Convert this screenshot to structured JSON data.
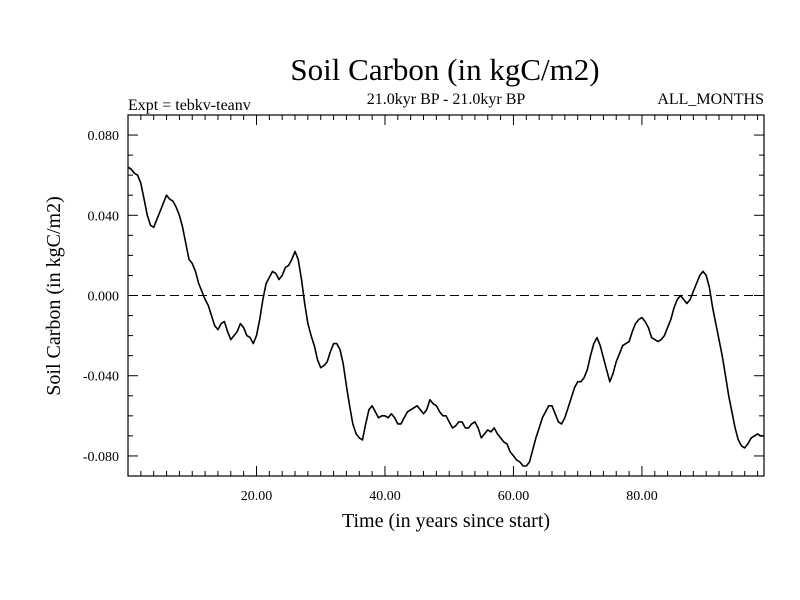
{
  "chart_data": {
    "type": "line",
    "title": "Soil Carbon (in kgC/m2)",
    "subtitle": "21.0kyr BP - 21.0kyr BP",
    "left_note": "Expt = tebkv-teanv",
    "right_note": "ALL_MONTHS",
    "xlabel": "Time (in years since start)",
    "ylabel": "Soil Carbon (in kgC/m2)",
    "xlim": [
      0,
      99
    ],
    "ylim": [
      -0.09,
      0.09
    ],
    "x_ticks": [
      {
        "v": 20,
        "label": "20.00"
      },
      {
        "v": 40,
        "label": "40.00"
      },
      {
        "v": 60,
        "label": "60.00"
      },
      {
        "v": 80,
        "label": "80.00"
      }
    ],
    "y_ticks": [
      {
        "v": 0.08,
        "label": "0.080"
      },
      {
        "v": 0.04,
        "label": "0.040"
      },
      {
        "v": 0.0,
        "label": "0.000"
      },
      {
        "v": -0.04,
        "label": "-0.040"
      },
      {
        "v": -0.08,
        "label": "-0.080"
      }
    ],
    "reference_line": {
      "y": 0.0,
      "style": "dashed"
    },
    "grid": false,
    "series": [
      {
        "color": "#000000",
        "points": [
          [
            0.0,
            0.064
          ],
          [
            0.5,
            0.063
          ],
          [
            1.0,
            0.061
          ],
          [
            1.5,
            0.06
          ],
          [
            2.0,
            0.056
          ],
          [
            2.5,
            0.048
          ],
          [
            3.0,
            0.04
          ],
          [
            3.5,
            0.035
          ],
          [
            4.0,
            0.034
          ],
          [
            4.5,
            0.038
          ],
          [
            5.0,
            0.042
          ],
          [
            5.5,
            0.046
          ],
          [
            6.0,
            0.05
          ],
          [
            6.5,
            0.048
          ],
          [
            7.0,
            0.047
          ],
          [
            7.5,
            0.044
          ],
          [
            8.0,
            0.04
          ],
          [
            8.5,
            0.034
          ],
          [
            9.0,
            0.026
          ],
          [
            9.5,
            0.018
          ],
          [
            10.0,
            0.016
          ],
          [
            10.5,
            0.012
          ],
          [
            11.0,
            0.006
          ],
          [
            11.5,
            0.002
          ],
          [
            12.0,
            -0.002
          ],
          [
            12.5,
            -0.005
          ],
          [
            13.0,
            -0.01
          ],
          [
            13.5,
            -0.015
          ],
          [
            14.0,
            -0.017
          ],
          [
            14.5,
            -0.014
          ],
          [
            15.0,
            -0.013
          ],
          [
            15.5,
            -0.018
          ],
          [
            16.0,
            -0.022
          ],
          [
            16.5,
            -0.02
          ],
          [
            17.0,
            -0.018
          ],
          [
            17.5,
            -0.014
          ],
          [
            18.0,
            -0.016
          ],
          [
            18.5,
            -0.02
          ],
          [
            19.0,
            -0.021
          ],
          [
            19.5,
            -0.024
          ],
          [
            20.0,
            -0.02
          ],
          [
            20.5,
            -0.012
          ],
          [
            21.0,
            -0.002
          ],
          [
            21.5,
            0.006
          ],
          [
            22.0,
            0.009
          ],
          [
            22.5,
            0.012
          ],
          [
            23.0,
            0.011
          ],
          [
            23.5,
            0.008
          ],
          [
            24.0,
            0.01
          ],
          [
            24.5,
            0.014
          ],
          [
            25.0,
            0.015
          ],
          [
            25.5,
            0.018
          ],
          [
            26.0,
            0.022
          ],
          [
            26.5,
            0.018
          ],
          [
            27.0,
            0.008
          ],
          [
            27.5,
            -0.004
          ],
          [
            28.0,
            -0.014
          ],
          [
            28.5,
            -0.02
          ],
          [
            29.0,
            -0.025
          ],
          [
            29.5,
            -0.032
          ],
          [
            30.0,
            -0.036
          ],
          [
            30.5,
            -0.035
          ],
          [
            31.0,
            -0.033
          ],
          [
            31.5,
            -0.028
          ],
          [
            32.0,
            -0.024
          ],
          [
            32.5,
            -0.024
          ],
          [
            33.0,
            -0.027
          ],
          [
            33.5,
            -0.034
          ],
          [
            34.0,
            -0.045
          ],
          [
            34.5,
            -0.055
          ],
          [
            35.0,
            -0.064
          ],
          [
            35.5,
            -0.069
          ],
          [
            36.0,
            -0.071
          ],
          [
            36.5,
            -0.072
          ],
          [
            37.0,
            -0.064
          ],
          [
            37.5,
            -0.057
          ],
          [
            38.0,
            -0.055
          ],
          [
            38.5,
            -0.058
          ],
          [
            39.0,
            -0.061
          ],
          [
            39.5,
            -0.06
          ],
          [
            40.0,
            -0.06
          ],
          [
            40.5,
            -0.061
          ],
          [
            41.0,
            -0.059
          ],
          [
            41.5,
            -0.061
          ],
          [
            42.0,
            -0.064
          ],
          [
            42.5,
            -0.064
          ],
          [
            43.0,
            -0.061
          ],
          [
            43.5,
            -0.058
          ],
          [
            44.0,
            -0.057
          ],
          [
            44.5,
            -0.056
          ],
          [
            45.0,
            -0.055
          ],
          [
            45.5,
            -0.057
          ],
          [
            46.0,
            -0.059
          ],
          [
            46.5,
            -0.057
          ],
          [
            47.0,
            -0.052
          ],
          [
            47.5,
            -0.054
          ],
          [
            48.0,
            -0.055
          ],
          [
            48.5,
            -0.058
          ],
          [
            49.0,
            -0.06
          ],
          [
            49.5,
            -0.06
          ],
          [
            50.0,
            -0.063
          ],
          [
            50.5,
            -0.066
          ],
          [
            51.0,
            -0.065
          ],
          [
            51.5,
            -0.063
          ],
          [
            52.0,
            -0.063
          ],
          [
            52.5,
            -0.066
          ],
          [
            53.0,
            -0.066
          ],
          [
            53.5,
            -0.064
          ],
          [
            54.0,
            -0.063
          ],
          [
            54.5,
            -0.066
          ],
          [
            55.0,
            -0.071
          ],
          [
            55.5,
            -0.069
          ],
          [
            56.0,
            -0.067
          ],
          [
            56.5,
            -0.068
          ],
          [
            57.0,
            -0.066
          ],
          [
            57.5,
            -0.069
          ],
          [
            58.0,
            -0.071
          ],
          [
            58.5,
            -0.073
          ],
          [
            59.0,
            -0.074
          ],
          [
            59.5,
            -0.078
          ],
          [
            60.0,
            -0.08
          ],
          [
            60.5,
            -0.082
          ],
          [
            61.0,
            -0.083
          ],
          [
            61.5,
            -0.085
          ],
          [
            62.0,
            -0.085
          ],
          [
            62.5,
            -0.083
          ],
          [
            63.0,
            -0.077
          ],
          [
            63.5,
            -0.071
          ],
          [
            64.0,
            -0.066
          ],
          [
            64.5,
            -0.061
          ],
          [
            65.0,
            -0.058
          ],
          [
            65.5,
            -0.055
          ],
          [
            66.0,
            -0.055
          ],
          [
            66.5,
            -0.059
          ],
          [
            67.0,
            -0.063
          ],
          [
            67.5,
            -0.064
          ],
          [
            68.0,
            -0.061
          ],
          [
            68.5,
            -0.056
          ],
          [
            69.0,
            -0.051
          ],
          [
            69.5,
            -0.046
          ],
          [
            70.0,
            -0.043
          ],
          [
            70.5,
            -0.043
          ],
          [
            71.0,
            -0.041
          ],
          [
            71.5,
            -0.037
          ],
          [
            72.0,
            -0.03
          ],
          [
            72.5,
            -0.024
          ],
          [
            73.0,
            -0.021
          ],
          [
            73.5,
            -0.025
          ],
          [
            74.0,
            -0.031
          ],
          [
            74.5,
            -0.037
          ],
          [
            75.0,
            -0.043
          ],
          [
            75.5,
            -0.039
          ],
          [
            76.0,
            -0.033
          ],
          [
            76.5,
            -0.029
          ],
          [
            77.0,
            -0.025
          ],
          [
            77.5,
            -0.024
          ],
          [
            78.0,
            -0.023
          ],
          [
            78.5,
            -0.018
          ],
          [
            79.0,
            -0.014
          ],
          [
            79.5,
            -0.012
          ],
          [
            80.0,
            -0.011
          ],
          [
            80.5,
            -0.013
          ],
          [
            81.0,
            -0.016
          ],
          [
            81.5,
            -0.021
          ],
          [
            82.0,
            -0.022
          ],
          [
            82.5,
            -0.023
          ],
          [
            83.0,
            -0.022
          ],
          [
            83.5,
            -0.02
          ],
          [
            84.0,
            -0.016
          ],
          [
            84.5,
            -0.012
          ],
          [
            85.0,
            -0.006
          ],
          [
            85.5,
            -0.002
          ],
          [
            86.0,
            0.0
          ],
          [
            86.5,
            -0.002
          ],
          [
            87.0,
            -0.004
          ],
          [
            87.5,
            -0.002
          ],
          [
            88.0,
            0.002
          ],
          [
            88.5,
            0.006
          ],
          [
            89.0,
            0.01
          ],
          [
            89.5,
            0.012
          ],
          [
            90.0,
            0.01
          ],
          [
            90.5,
            0.004
          ],
          [
            91.0,
            -0.006
          ],
          [
            91.5,
            -0.014
          ],
          [
            92.0,
            -0.022
          ],
          [
            92.5,
            -0.03
          ],
          [
            93.0,
            -0.04
          ],
          [
            93.5,
            -0.05
          ],
          [
            94.0,
            -0.058
          ],
          [
            94.5,
            -0.066
          ],
          [
            95.0,
            -0.072
          ],
          [
            95.5,
            -0.075
          ],
          [
            96.0,
            -0.076
          ],
          [
            96.5,
            -0.074
          ],
          [
            97.0,
            -0.071
          ],
          [
            97.5,
            -0.07
          ],
          [
            98.0,
            -0.069
          ],
          [
            98.5,
            -0.07
          ],
          [
            99.0,
            -0.07
          ]
        ]
      }
    ]
  }
}
